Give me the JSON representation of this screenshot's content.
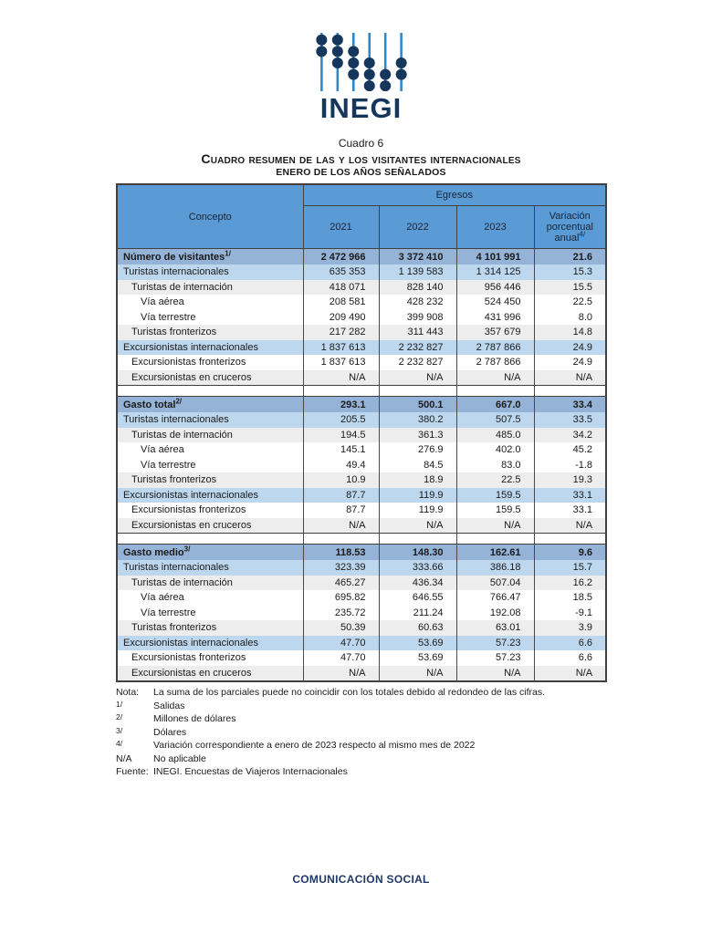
{
  "colors": {
    "header_blue": "#5B9BD5",
    "section_blue": "#95B3D7",
    "light_blue": "#BDD7EE",
    "stripe_gray": "#EDEDED",
    "navy": "#1F3864",
    "logo_navy": "#16365C",
    "logo_rod_blue": "#2E86C9",
    "border_dark": "#404040"
  },
  "logo": {
    "wordmark": "INEGI"
  },
  "title": {
    "cuadro": "Cuadro 6",
    "main": "Cuadro resumen de las y los visitantes internacionales",
    "subtitle": "ENERO DE LOS AÑOS SEÑALADOS"
  },
  "table": {
    "concept_header": "Concepto",
    "group_header": "Egresos",
    "year_headers": [
      "2021",
      "2022",
      "2023"
    ],
    "variation_header": "Variación porcentual anual",
    "variation_sup": "4/",
    "blocks": [
      {
        "section": {
          "label": "Número de visitantes",
          "sup": "1/",
          "values": [
            "2 472 966",
            "3 372 410",
            "4 101 991",
            "21.6"
          ]
        },
        "rows": [
          {
            "label": "Turistas internacionales",
            "indent": 0,
            "bg": "blue",
            "values": [
              "635 353",
              "1 139 583",
              "1 314 125",
              "15.3"
            ]
          },
          {
            "label": "Turistas de internación",
            "indent": 1,
            "bg": "gray",
            "values": [
              "418 071",
              "828 140",
              "956 446",
              "15.5"
            ]
          },
          {
            "label": "Vía aérea",
            "indent": 2,
            "bg": "white",
            "values": [
              "208 581",
              "428 232",
              "524 450",
              "22.5"
            ]
          },
          {
            "label": "Vía terrestre",
            "indent": 2,
            "bg": "white",
            "values": [
              "209 490",
              "399 908",
              "431 996",
              "8.0"
            ]
          },
          {
            "label": "Turistas fronterizos",
            "indent": 1,
            "bg": "gray",
            "values": [
              "217 282",
              "311 443",
              "357 679",
              "14.8"
            ]
          },
          {
            "label": "Excursionistas internacionales",
            "indent": 0,
            "bg": "blue",
            "values": [
              "1 837 613",
              "2 232 827",
              "2 787 866",
              "24.9"
            ]
          },
          {
            "label": "Excursionistas fronterizos",
            "indent": 1,
            "bg": "white",
            "values": [
              "1 837 613",
              "2 232 827",
              "2 787 866",
              "24.9"
            ]
          },
          {
            "label": "Excursionistas en cruceros",
            "indent": 1,
            "bg": "gray",
            "values": [
              "N/A",
              "N/A",
              "N/A",
              "N/A"
            ]
          }
        ]
      },
      {
        "section": {
          "label": "Gasto total",
          "sup": "2/",
          "values": [
            "293.1",
            "500.1",
            "667.0",
            "33.4"
          ]
        },
        "rows": [
          {
            "label": "Turistas internacionales",
            "indent": 0,
            "bg": "blue",
            "values": [
              "205.5",
              "380.2",
              "507.5",
              "33.5"
            ]
          },
          {
            "label": "Turistas de internación",
            "indent": 1,
            "bg": "gray",
            "values": [
              "194.5",
              "361.3",
              "485.0",
              "34.2"
            ]
          },
          {
            "label": "Vía aérea",
            "indent": 2,
            "bg": "white",
            "values": [
              "145.1",
              "276.9",
              "402.0",
              "45.2"
            ]
          },
          {
            "label": "Vía terrestre",
            "indent": 2,
            "bg": "white",
            "values": [
              "49.4",
              "84.5",
              "83.0",
              "-1.8"
            ]
          },
          {
            "label": "Turistas fronterizos",
            "indent": 1,
            "bg": "gray",
            "values": [
              "10.9",
              "18.9",
              "22.5",
              "19.3"
            ]
          },
          {
            "label": "Excursionistas internacionales",
            "indent": 0,
            "bg": "blue",
            "values": [
              "87.7",
              "119.9",
              "159.5",
              "33.1"
            ]
          },
          {
            "label": "Excursionistas fronterizos",
            "indent": 1,
            "bg": "white",
            "values": [
              "87.7",
              "119.9",
              "159.5",
              "33.1"
            ]
          },
          {
            "label": "Excursionistas en cruceros",
            "indent": 1,
            "bg": "gray",
            "values": [
              "N/A",
              "N/A",
              "N/A",
              "N/A"
            ]
          }
        ]
      },
      {
        "section": {
          "label": "Gasto medio",
          "sup": "3/",
          "values": [
            "118.53",
            "148.30",
            "162.61",
            "9.6"
          ]
        },
        "rows": [
          {
            "label": "Turistas internacionales",
            "indent": 0,
            "bg": "blue",
            "values": [
              "323.39",
              "333.66",
              "386.18",
              "15.7"
            ]
          },
          {
            "label": "Turistas de internación",
            "indent": 1,
            "bg": "gray",
            "values": [
              "465.27",
              "436.34",
              "507.04",
              "16.2"
            ]
          },
          {
            "label": "Vía aérea",
            "indent": 2,
            "bg": "white",
            "values": [
              "695.82",
              "646.55",
              "766.47",
              "18.5"
            ]
          },
          {
            "label": "Vía terrestre",
            "indent": 2,
            "bg": "white",
            "values": [
              "235.72",
              "211.24",
              "192.08",
              "-9.1"
            ]
          },
          {
            "label": "Turistas fronterizos",
            "indent": 1,
            "bg": "gray",
            "values": [
              "50.39",
              "60.63",
              "63.01",
              "3.9"
            ]
          },
          {
            "label": "Excursionistas internacionales",
            "indent": 0,
            "bg": "blue",
            "values": [
              "47.70",
              "53.69",
              "57.23",
              "6.6"
            ]
          },
          {
            "label": "Excursionistas fronterizos",
            "indent": 1,
            "bg": "white",
            "values": [
              "47.70",
              "53.69",
              "57.23",
              "6.6"
            ]
          },
          {
            "label": "Excursionistas en cruceros",
            "indent": 1,
            "bg": "gray",
            "values": [
              "N/A",
              "N/A",
              "N/A",
              "N/A"
            ]
          }
        ]
      }
    ]
  },
  "footnotes": {
    "nota": {
      "label": "Nota:",
      "text": "La suma de los parciales puede no coincidir con los totales debido al redondeo de las cifras."
    },
    "items": [
      {
        "marker": "1/",
        "sup": true,
        "text": "Salidas"
      },
      {
        "marker": "2/",
        "sup": true,
        "text": "Millones de dólares"
      },
      {
        "marker": "3/",
        "sup": true,
        "text": "Dólares"
      },
      {
        "marker": "4/",
        "sup": true,
        "text": "Variación correspondiente a enero de 2023 respecto al mismo mes de 2022"
      },
      {
        "marker": "N/A",
        "sup": false,
        "text": "No aplicable"
      }
    ],
    "fuente": {
      "label": "Fuente:",
      "text": "INEGI. Encuestas de Viajeros Internacionales"
    }
  },
  "footer": {
    "text": "COMUNICACIÓN SOCIAL"
  }
}
